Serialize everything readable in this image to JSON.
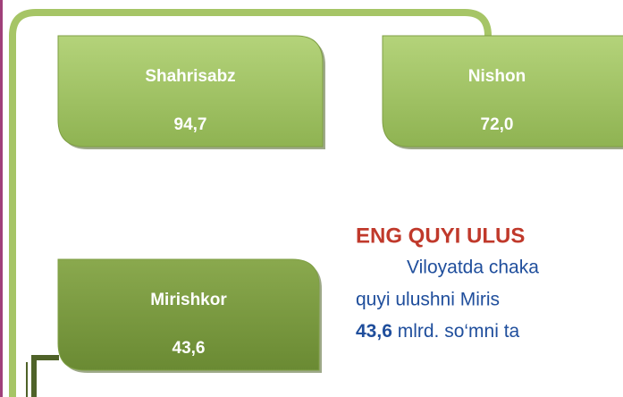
{
  "boxes": [
    {
      "name": "Shahrisabz",
      "value": "94,7"
    },
    {
      "name": "Nishon",
      "value": "72,0"
    },
    {
      "name": "Mirishkor",
      "value": "43,6"
    }
  ],
  "heading": "ENG QUYI ULUS",
  "paragraph": [
    "Viloyatda chaka",
    "quyi ulushni Miris",
    [
      "43,6",
      " mlrd. so‘mni ta"
    ]
  ]
}
